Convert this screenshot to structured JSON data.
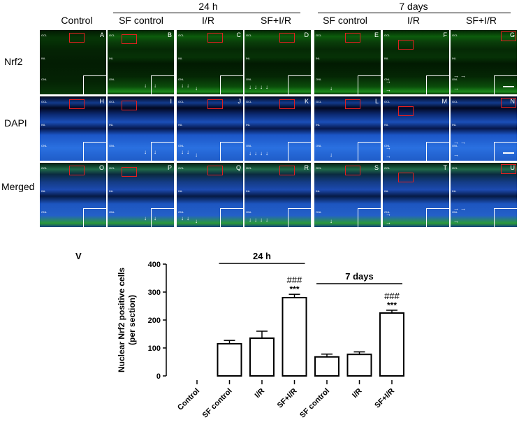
{
  "figure": {
    "columns": [
      {
        "label": "Control"
      },
      {
        "label": "SF control"
      },
      {
        "label": "I/R"
      },
      {
        "label": "SF+I/R"
      },
      {
        "label": "SF control"
      },
      {
        "label": "I/R"
      },
      {
        "label": "SF+I/R"
      }
    ],
    "groups": [
      {
        "label": "24 h"
      },
      {
        "label": "7 days"
      }
    ],
    "rows": [
      {
        "label": "Nrf2",
        "letters": [
          "A",
          "B",
          "C",
          "D",
          "E",
          "F",
          "G"
        ]
      },
      {
        "label": "DAPI",
        "letters": [
          "H",
          "I",
          "J",
          "K",
          "L",
          "M",
          "N"
        ]
      },
      {
        "label": "Merged",
        "letters": [
          "O",
          "P",
          "Q",
          "R",
          "S",
          "T",
          "U"
        ]
      }
    ],
    "layer_labels": [
      "GCL",
      "INL",
      "ONL"
    ],
    "panel_v_letter": "V",
    "colors": {
      "nrf2": "#1c8a1c",
      "dapi": "#2a70e0",
      "roi_box": "#e02020"
    }
  },
  "chart_data": {
    "type": "bar",
    "ylabel": "Nuclear Nrf2 positive cells\n(per section)",
    "ylim": [
      0,
      400
    ],
    "yticks": [
      0,
      100,
      200,
      300,
      400
    ],
    "categories": [
      "Control",
      "SF control",
      "I/R",
      "SF+I/R",
      "SF control",
      "I/R",
      "SF+I/R"
    ],
    "values": [
      0,
      115,
      135,
      280,
      68,
      77,
      225
    ],
    "errors": [
      0,
      12,
      25,
      12,
      10,
      9,
      10
    ],
    "groups": [
      {
        "label": "24 h",
        "from": 1,
        "to": 3
      },
      {
        "label": "7 days",
        "from": 4,
        "to": 6
      }
    ],
    "annotations": [
      {
        "index": 3,
        "lines": [
          "###",
          "***"
        ]
      },
      {
        "index": 6,
        "lines": [
          "###",
          "***"
        ]
      }
    ]
  }
}
